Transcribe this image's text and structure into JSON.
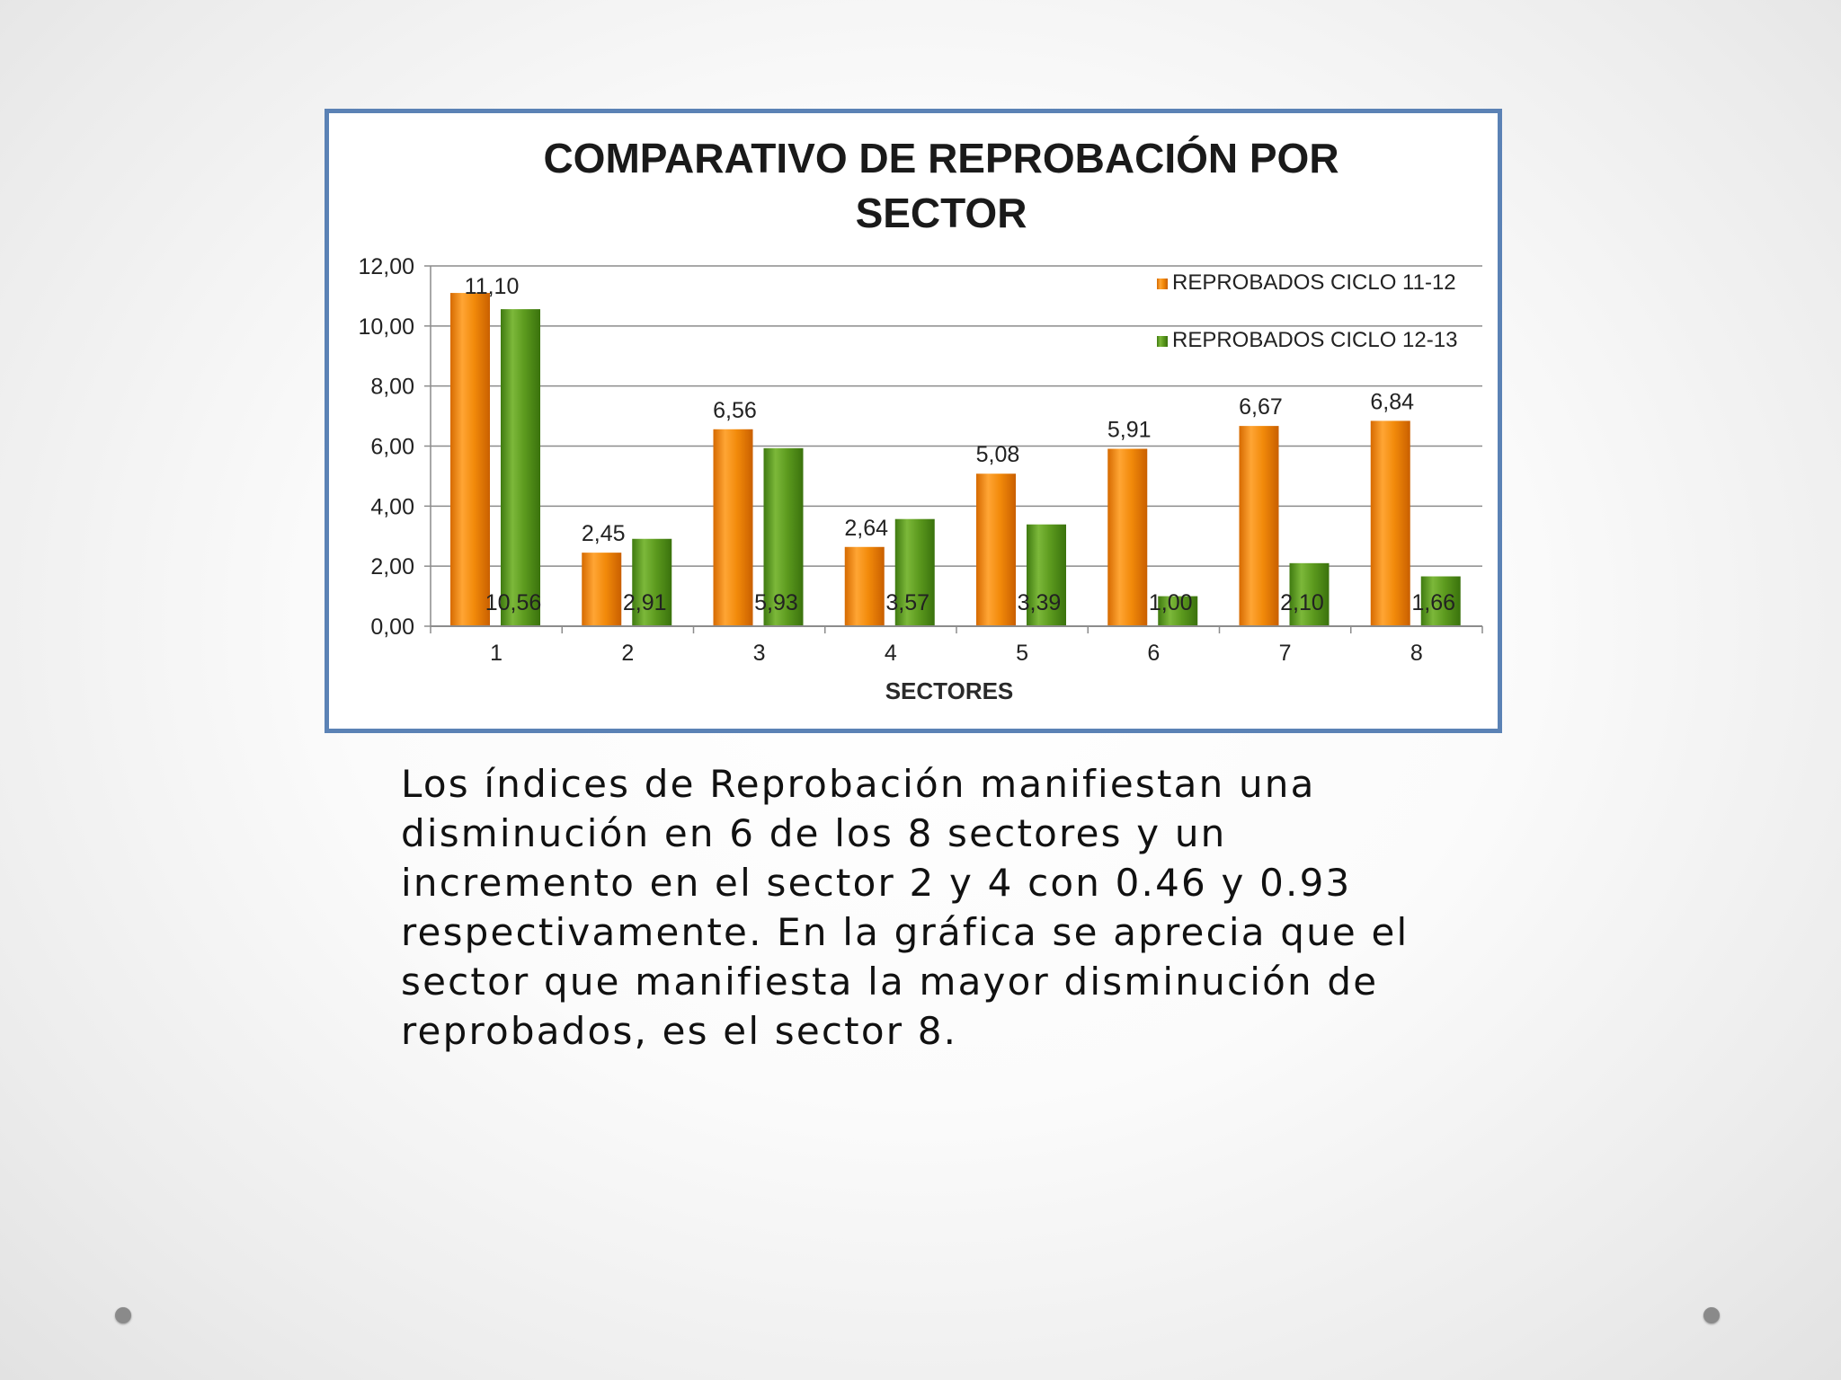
{
  "chart_data": {
    "type": "bar",
    "title": "COMPARATIVO DE REPROBACIÓN POR SECTOR",
    "title_lines": [
      "COMPARATIVO DE REPROBACIÓN POR",
      "SECTOR"
    ],
    "xlabel": "SECTORES",
    "ylabel": "",
    "categories": [
      "1",
      "2",
      "3",
      "4",
      "5",
      "6",
      "7",
      "8"
    ],
    "series": [
      {
        "name": "REPROBADOS CICLO 11-12",
        "values": [
          11.1,
          2.45,
          6.56,
          2.64,
          5.08,
          5.91,
          6.67,
          6.84
        ],
        "labels": [
          "11,10",
          "2,45",
          "6,56",
          "2,64",
          "5,08",
          "5,91",
          "6,67",
          "6,84"
        ],
        "color": "#f28a0a"
      },
      {
        "name": "REPROBADOS CICLO 12-13",
        "values": [
          10.56,
          2.91,
          5.93,
          3.57,
          3.39,
          1.0,
          2.1,
          1.66
        ],
        "labels": [
          "10,56",
          "2,91",
          "5,93",
          "3,57",
          "3,39",
          "1,00",
          "2,10",
          "1,66"
        ],
        "color": "#5c9a1e"
      }
    ],
    "ylim": [
      0,
      12
    ],
    "yticks": [
      "0,00",
      "2,00",
      "4,00",
      "6,00",
      "8,00",
      "10,00",
      "12,00"
    ],
    "grid": true,
    "legend_position": "top-right"
  },
  "slide": {
    "paragraph_lines": [
      "Los índices de Reprobación manifiestan una",
      "disminución en 6 de los 8 sectores y un",
      "incremento en el sector 2 y 4 con 0.46 y 0.93",
      "respectivamente. En la gráfica se aprecia que el",
      "sector que manifiesta la mayor disminución de",
      "reprobados, es el sector 8."
    ]
  }
}
